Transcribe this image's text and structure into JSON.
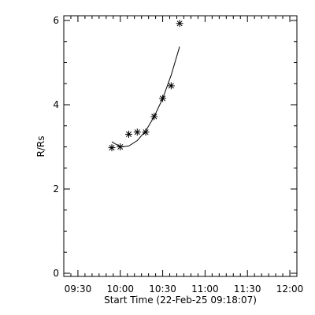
{
  "chart_data": {
    "type": "scatter",
    "title": "",
    "xlabel": "Start Time (22-Feb-25 09:18:07)",
    "ylabel": "R/Rs",
    "xlim": [
      "09:20",
      "12:05"
    ],
    "ylim": [
      0,
      6
    ],
    "x_ticks": [
      "09:30",
      "10:00",
      "10:30",
      "11:00",
      "11:30",
      "12:00"
    ],
    "y_ticks": [
      0,
      2,
      4,
      6
    ],
    "grid": false,
    "marker": "asterisk",
    "points": [
      {
        "x": "09:54",
        "y": 2.98
      },
      {
        "x": "10:00",
        "y": 3.0
      },
      {
        "x": "10:06",
        "y": 3.3
      },
      {
        "x": "10:12",
        "y": 3.35
      },
      {
        "x": "10:18",
        "y": 3.35
      },
      {
        "x": "10:24",
        "y": 3.72
      },
      {
        "x": "10:30",
        "y": 4.15
      },
      {
        "x": "10:36",
        "y": 4.45
      },
      {
        "x": "10:42",
        "y": 5.93
      }
    ],
    "fit_curve": [
      {
        "x": "09:54",
        "y": 3.12
      },
      {
        "x": "10:00",
        "y": 3.0
      },
      {
        "x": "10:06",
        "y": 3.02
      },
      {
        "x": "10:12",
        "y": 3.15
      },
      {
        "x": "10:18",
        "y": 3.38
      },
      {
        "x": "10:24",
        "y": 3.72
      },
      {
        "x": "10:30",
        "y": 4.15
      },
      {
        "x": "10:36",
        "y": 4.7
      },
      {
        "x": "10:42",
        "y": 5.38
      }
    ]
  }
}
